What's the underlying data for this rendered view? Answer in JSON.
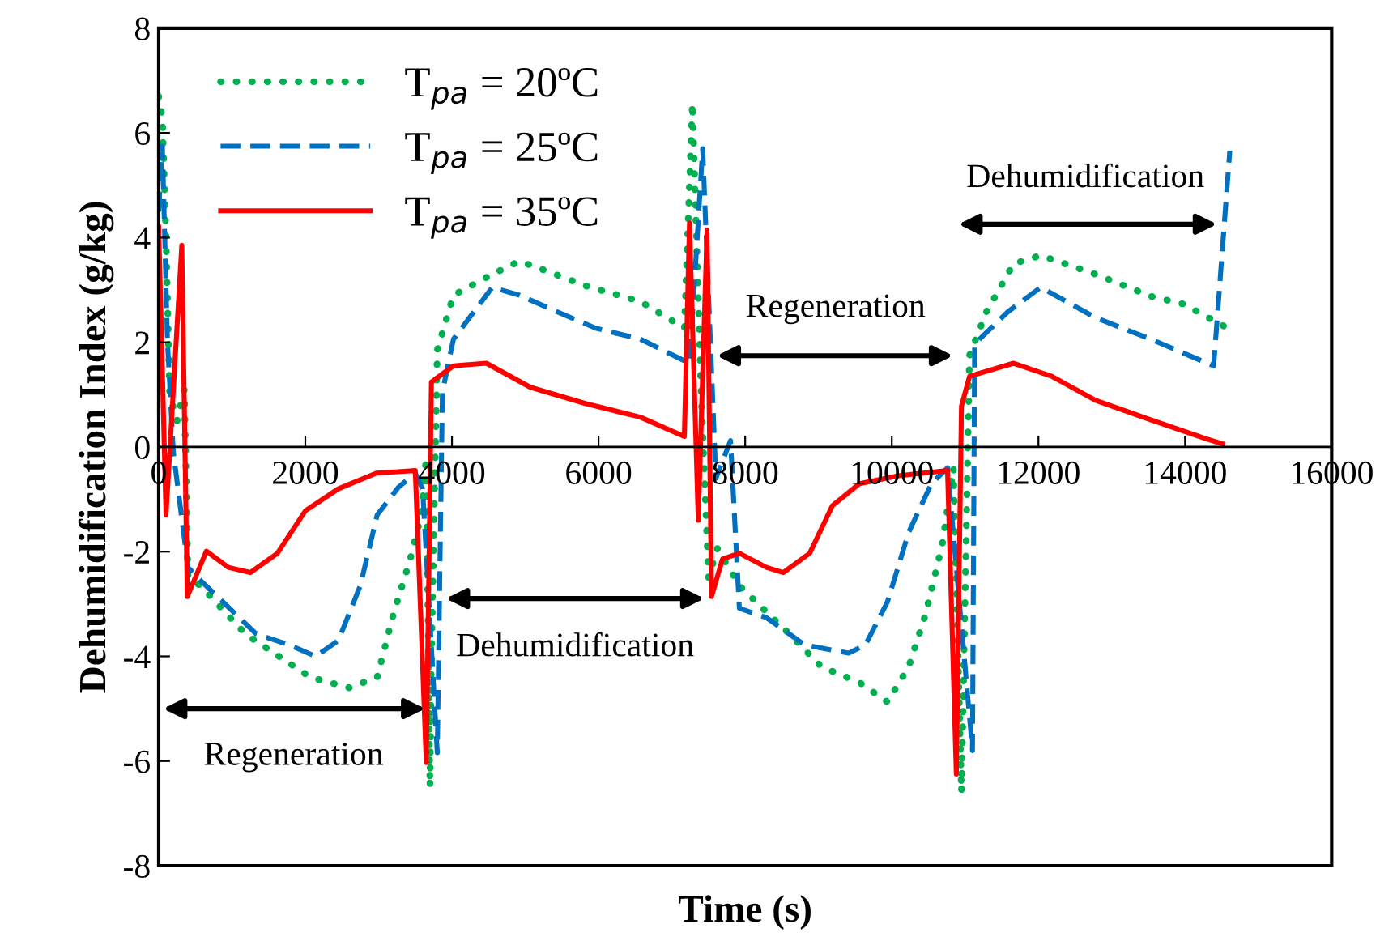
{
  "chart_data": {
    "type": "line",
    "xlabel": "Time (s)",
    "ylabel": "Dehumidification Index (g/kg)",
    "xlim": [
      0,
      16000
    ],
    "ylim": [
      -8,
      8
    ],
    "xticks": [
      0,
      2000,
      4000,
      6000,
      8000,
      10000,
      12000,
      14000,
      16000
    ],
    "yticks": [
      -8,
      -6,
      -4,
      -2,
      0,
      2,
      4,
      6,
      8
    ],
    "grid": false,
    "legend": "top left",
    "series": [
      {
        "name": "T$_{pa}$ = 20ºC",
        "color": "#00b050",
        "line_style": "dotted",
        "x": [
          0,
          50,
          100,
          150,
          250,
          350,
          400,
          570,
          1180,
          2070,
          2600,
          2980,
          3200,
          3430,
          3580,
          3650,
          3700,
          3720,
          3800,
          4020,
          4550,
          4920,
          5220,
          5820,
          6570,
          7170,
          7280,
          7400,
          7500,
          7620,
          7920,
          8600,
          9040,
          9560,
          9940,
          10230,
          10460,
          10690,
          10840,
          10950,
          11060,
          11290,
          11660,
          12030,
          12780,
          13530,
          13980,
          14580
        ],
        "values": [
          6.7,
          6.3,
          4,
          1,
          0.5,
          1.1,
          -2.5,
          -2.65,
          -3.57,
          -4.4,
          -4.6,
          -4.4,
          -3.2,
          -2.15,
          -1.3,
          -0.2,
          -6.5,
          -4,
          1.85,
          2.9,
          3.3,
          3.55,
          3.4,
          3.08,
          2.78,
          2.27,
          6.57,
          1,
          -2.5,
          -1.94,
          -2.65,
          -3.57,
          -4.2,
          -4.5,
          -4.87,
          -4.2,
          -3.2,
          -1.85,
          -0.4,
          -6.6,
          1.75,
          2.58,
          3.5,
          3.66,
          3.3,
          2.88,
          2.73,
          2.27
        ]
      },
      {
        "name": "T$_{pa}$ = 25ºC",
        "color": "#0070c0",
        "line_style": "dashed",
        "x": [
          0,
          50,
          120,
          200,
          400,
          570,
          1330,
          1780,
          2140,
          2450,
          2750,
          2980,
          3270,
          3500,
          3600,
          3800,
          3870,
          4020,
          4550,
          4920,
          5440,
          5960,
          6570,
          7240,
          7420,
          7600,
          7800,
          7920,
          8290,
          8810,
          9410,
          9640,
          9940,
          10230,
          10540,
          10760,
          11100,
          11130,
          11580,
          12030,
          12780,
          13530,
          14390,
          14610
        ],
        "values": [
          4.5,
          5.75,
          2,
          -0.1,
          -2.3,
          -2.55,
          -3.57,
          -3.78,
          -4.0,
          -3.7,
          -2.65,
          -1.3,
          -0.77,
          -0.5,
          -0.8,
          -5.84,
          1.05,
          2.06,
          3.05,
          2.9,
          2.58,
          2.27,
          2.06,
          1.6,
          5.7,
          -0.6,
          0.12,
          -3.08,
          -3.26,
          -3.78,
          -3.94,
          -3.78,
          -2.96,
          -1.63,
          -0.7,
          -0.4,
          -5.8,
          1.97,
          2.58,
          3.05,
          2.47,
          2.06,
          1.55,
          5.66
        ]
      },
      {
        "name": "T$_{pa}$ = 35ºC",
        "color": "#ff0000",
        "line_style": "solid",
        "x": [
          0,
          100,
          315,
          390,
          650,
          950,
          1250,
          1620,
          2000,
          2450,
          2970,
          3500,
          3650,
          3720,
          4020,
          4470,
          5070,
          5820,
          6570,
          7170,
          7240,
          7360,
          7480,
          7540,
          7690,
          7920,
          8290,
          8520,
          8880,
          9190,
          9560,
          10090,
          10760,
          10880,
          10950,
          11060,
          11660,
          12180,
          12780,
          13530,
          14280,
          14510
        ],
        "values": [
          4.2,
          -1.3,
          3.85,
          -2.86,
          -1.99,
          -2.3,
          -2.4,
          -2.03,
          -1.22,
          -0.8,
          -0.5,
          -0.45,
          -6.03,
          1.24,
          1.55,
          1.6,
          1.14,
          0.83,
          0.57,
          0.2,
          4.28,
          -1.4,
          4.15,
          -2.86,
          -2.14,
          -2.03,
          -2.3,
          -2.4,
          -2.03,
          -1.12,
          -0.7,
          -0.55,
          -0.45,
          -6.25,
          0.78,
          1.35,
          1.6,
          1.35,
          0.89,
          0.52,
          0.16,
          0.06
        ]
      }
    ],
    "annotations": [
      "Regeneration",
      "Dehumidification",
      "Regeneration",
      "Dehumidification"
    ]
  }
}
